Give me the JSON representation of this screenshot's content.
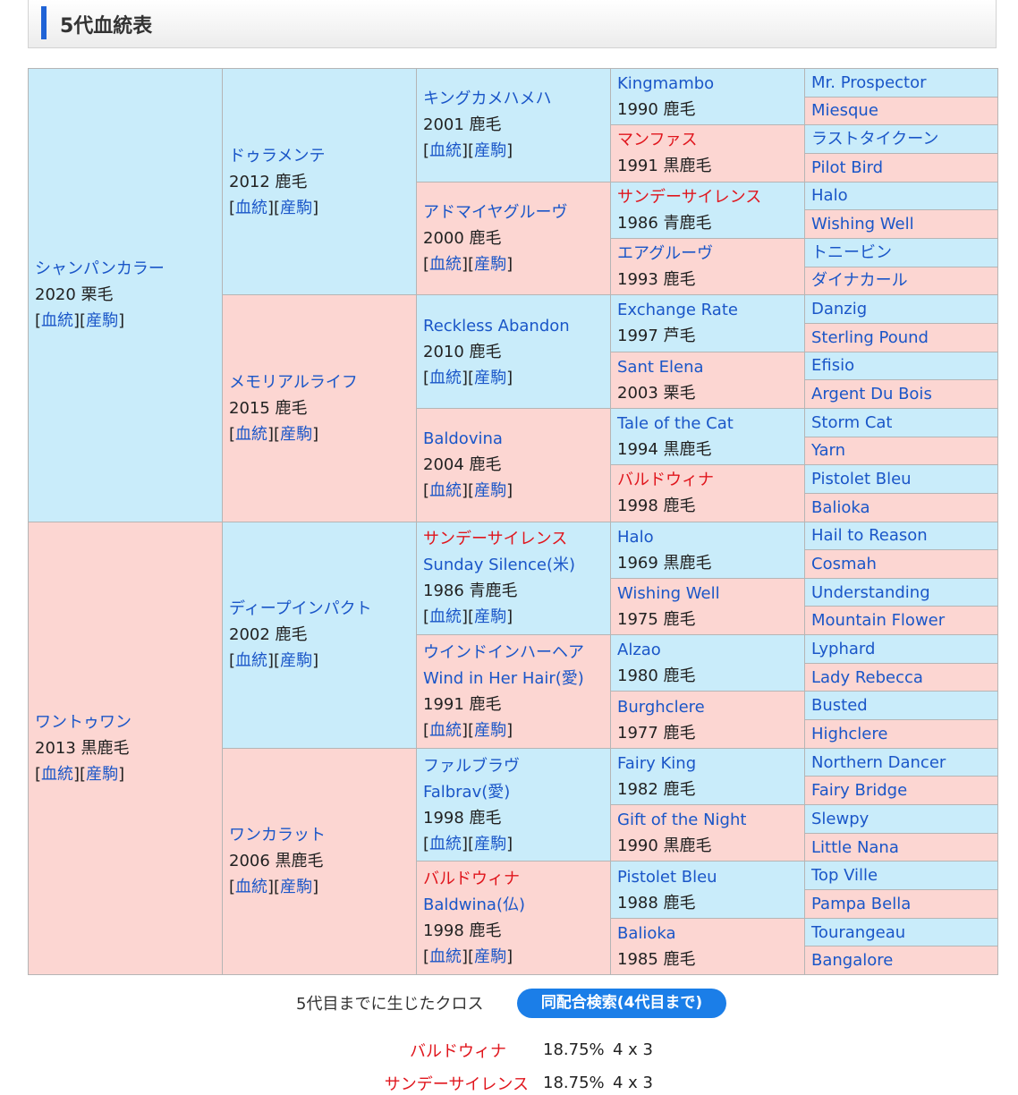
{
  "section": {
    "title": "5代血統表"
  },
  "link_pedigree": "血統",
  "link_offspring": "産駒",
  "gen1": [
    {
      "name": "シャンパンカラー",
      "info": "2020 栗毛"
    },
    {
      "name": "ワントゥワン",
      "info": "2013 黒鹿毛"
    }
  ],
  "gen2": [
    {
      "name": "ドゥラメンテ",
      "info": "2012 鹿毛"
    },
    {
      "name": "メモリアルライフ",
      "info": "2015 鹿毛"
    },
    {
      "name": "ディープインパクト",
      "info": "2002 鹿毛"
    },
    {
      "name": "ワンカラット",
      "info": "2006 黒鹿毛"
    }
  ],
  "gen3": [
    {
      "name": "キングカメハメハ",
      "info": "2001 鹿毛"
    },
    {
      "name": "アドマイヤグルーヴ",
      "info": "2000 鹿毛"
    },
    {
      "name": "Reckless Abandon",
      "info": "2010 鹿毛"
    },
    {
      "name": "Baldovina",
      "info": "2004 鹿毛"
    },
    {
      "name": "サンデーサイレンス",
      "name2": "Sunday Silence(米)",
      "info": "1986 青鹿毛"
    },
    {
      "name": "ウインドインハーヘア",
      "name2": "Wind in Her Hair(愛)",
      "info": "1991 鹿毛"
    },
    {
      "name": "ファルブラヴ",
      "name2": "Falbrav(愛)",
      "info": "1998 鹿毛"
    },
    {
      "name": "バルドウィナ",
      "name2": "Baldwina(仏)",
      "info": "1998 鹿毛"
    }
  ],
  "gen4": [
    {
      "name": "Kingmambo",
      "info": "1990 鹿毛"
    },
    {
      "name": "マンファス",
      "info": "1991 黒鹿毛"
    },
    {
      "name": "サンデーサイレンス",
      "info": "1986 青鹿毛"
    },
    {
      "name": "エアグルーヴ",
      "info": "1993 鹿毛"
    },
    {
      "name": "Exchange Rate",
      "info": "1997 芦毛"
    },
    {
      "name": "Sant Elena",
      "info": "2003 栗毛"
    },
    {
      "name": "Tale of the Cat",
      "info": "1994 黒鹿毛"
    },
    {
      "name": "バルドウィナ",
      "info": "1998 鹿毛"
    },
    {
      "name": "Halo",
      "info": "1969 黒鹿毛"
    },
    {
      "name": "Wishing Well",
      "info": "1975 鹿毛"
    },
    {
      "name": "Alzao",
      "info": "1980 鹿毛"
    },
    {
      "name": "Burghclere",
      "info": "1977 鹿毛"
    },
    {
      "name": "Fairy King",
      "info": "1982 鹿毛"
    },
    {
      "name": "Gift of the Night",
      "info": "1990 黒鹿毛"
    },
    {
      "name": "Pistolet Bleu",
      "info": "1988 鹿毛"
    },
    {
      "name": "Balioka",
      "info": "1985 鹿毛"
    }
  ],
  "gen5": [
    "Mr. Prospector",
    "Miesque",
    "ラストタイクーン",
    "Pilot Bird",
    "Halo",
    "Wishing Well",
    "トニービン",
    "ダイナカール",
    "Danzig",
    "Sterling Pound",
    "Efisio",
    "Argent Du Bois",
    "Storm Cat",
    "Yarn",
    "Pistolet Bleu",
    "Balioka",
    "Hail to Reason",
    "Cosmah",
    "Understanding",
    "Mountain Flower",
    "Lyphard",
    "Lady Rebecca",
    "Busted",
    "Highclere",
    "Northern Dancer",
    "Fairy Bridge",
    "Slewpy",
    "Little Nana",
    "Top Ville",
    "Pampa Bella",
    "Tourangeau",
    "Bangalore"
  ],
  "cross": {
    "label": "5代目までに生じたクロス",
    "button": "同配合検索(4代目まで)",
    "rows": [
      {
        "name": "バルドウィナ",
        "pct": "18.75%",
        "gen": "4 x 3"
      },
      {
        "name": "サンデーサイレンス",
        "pct": "18.75%",
        "gen": "4 x 3"
      }
    ]
  }
}
